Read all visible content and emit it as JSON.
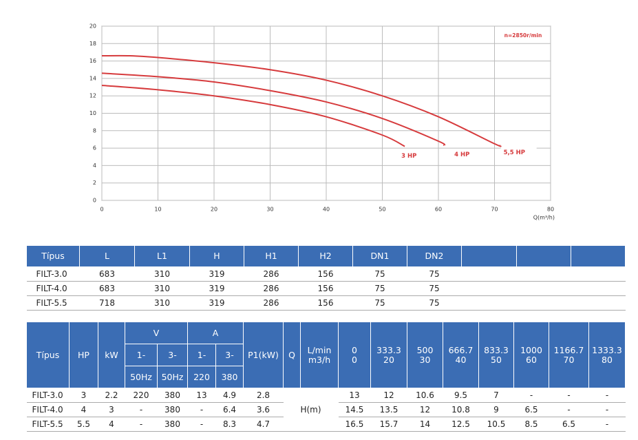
{
  "chart_data": {
    "type": "line",
    "annotation": "n=2850r/min",
    "x_label": "Q(m³/h)",
    "xlim": [
      0,
      80
    ],
    "xticks": [
      0,
      10,
      20,
      30,
      40,
      50,
      60,
      70,
      80
    ],
    "ylim": [
      0,
      20
    ],
    "yticks": [
      0,
      2,
      4,
      6,
      8,
      10,
      12,
      14,
      16,
      18,
      20
    ],
    "grid": true,
    "series": [
      {
        "name": "3 HP",
        "color": "#d63a3c",
        "x": [
          0,
          10,
          20,
          30,
          40,
          50,
          54
        ],
        "values": [
          13.2,
          12.7,
          12.0,
          11.0,
          9.6,
          7.5,
          6.2
        ]
      },
      {
        "name": "4 HP",
        "color": "#d63a3c",
        "x": [
          0,
          10,
          20,
          30,
          40,
          50,
          60,
          61
        ],
        "values": [
          14.6,
          14.2,
          13.6,
          12.6,
          11.3,
          9.4,
          6.8,
          6.3
        ]
      },
      {
        "name": "5,5 HP",
        "color": "#d63a3c",
        "x": [
          0,
          5,
          10,
          20,
          30,
          40,
          50,
          60,
          70,
          71
        ],
        "values": [
          16.6,
          16.6,
          16.4,
          15.8,
          15.0,
          13.8,
          12.0,
          9.6,
          6.5,
          6.3
        ]
      }
    ]
  },
  "dimensions_table": {
    "header": [
      "Típus",
      "L",
      "L1",
      "H",
      "H1",
      "H2",
      "DN1",
      "DN2"
    ],
    "rows": [
      [
        "FILT-3.0",
        "683",
        "310",
        "319",
        "286",
        "156",
        "75",
        "75"
      ],
      [
        "FILT-4.0",
        "683",
        "310",
        "319",
        "286",
        "156",
        "75",
        "75"
      ],
      [
        "FILT-5.5",
        "718",
        "310",
        "319",
        "286",
        "156",
        "75",
        "75"
      ]
    ]
  },
  "performance_table": {
    "header": {
      "type": "Típus",
      "hp": "HP",
      "kw": "kW",
      "v": "V",
      "v_phases": [
        "1-",
        "3-"
      ],
      "v_freq": [
        "50Hz",
        "50Hz"
      ],
      "a": "A",
      "a_phases": [
        "1-",
        "3-"
      ],
      "a_volts": [
        "220",
        "380"
      ],
      "p1": "P1(kW)",
      "q": "Q",
      "flow_units": [
        "L/min",
        "m3/h"
      ],
      "flows": [
        [
          "0",
          "0"
        ],
        [
          "333.3",
          "20"
        ],
        [
          "500",
          "30"
        ],
        [
          "666.7",
          "40"
        ],
        [
          "833.3",
          "50"
        ],
        [
          "1000",
          "60"
        ],
        [
          "1166.7",
          "70"
        ],
        [
          "1333.3",
          "80"
        ]
      ]
    },
    "head_label": "H(m)",
    "rows": [
      [
        "FILT-3.0",
        "3",
        "2.2",
        "220",
        "380",
        "13",
        "4.9",
        "2.8",
        "13",
        "12",
        "10.6",
        "9.5",
        "7",
        "-",
        "-",
        "-"
      ],
      [
        "FILT-4.0",
        "4",
        "3",
        "-",
        "380",
        "-",
        "6.4",
        "3.6",
        "14.5",
        "13.5",
        "12",
        "10.8",
        "9",
        "6.5",
        "-",
        "-"
      ],
      [
        "FILT-5.5",
        "5.5",
        "4",
        "-",
        "380",
        "-",
        "8.3",
        "4.7",
        "16.5",
        "15.7",
        "14",
        "12.5",
        "10.5",
        "8.5",
        "6.5",
        "-"
      ]
    ]
  }
}
